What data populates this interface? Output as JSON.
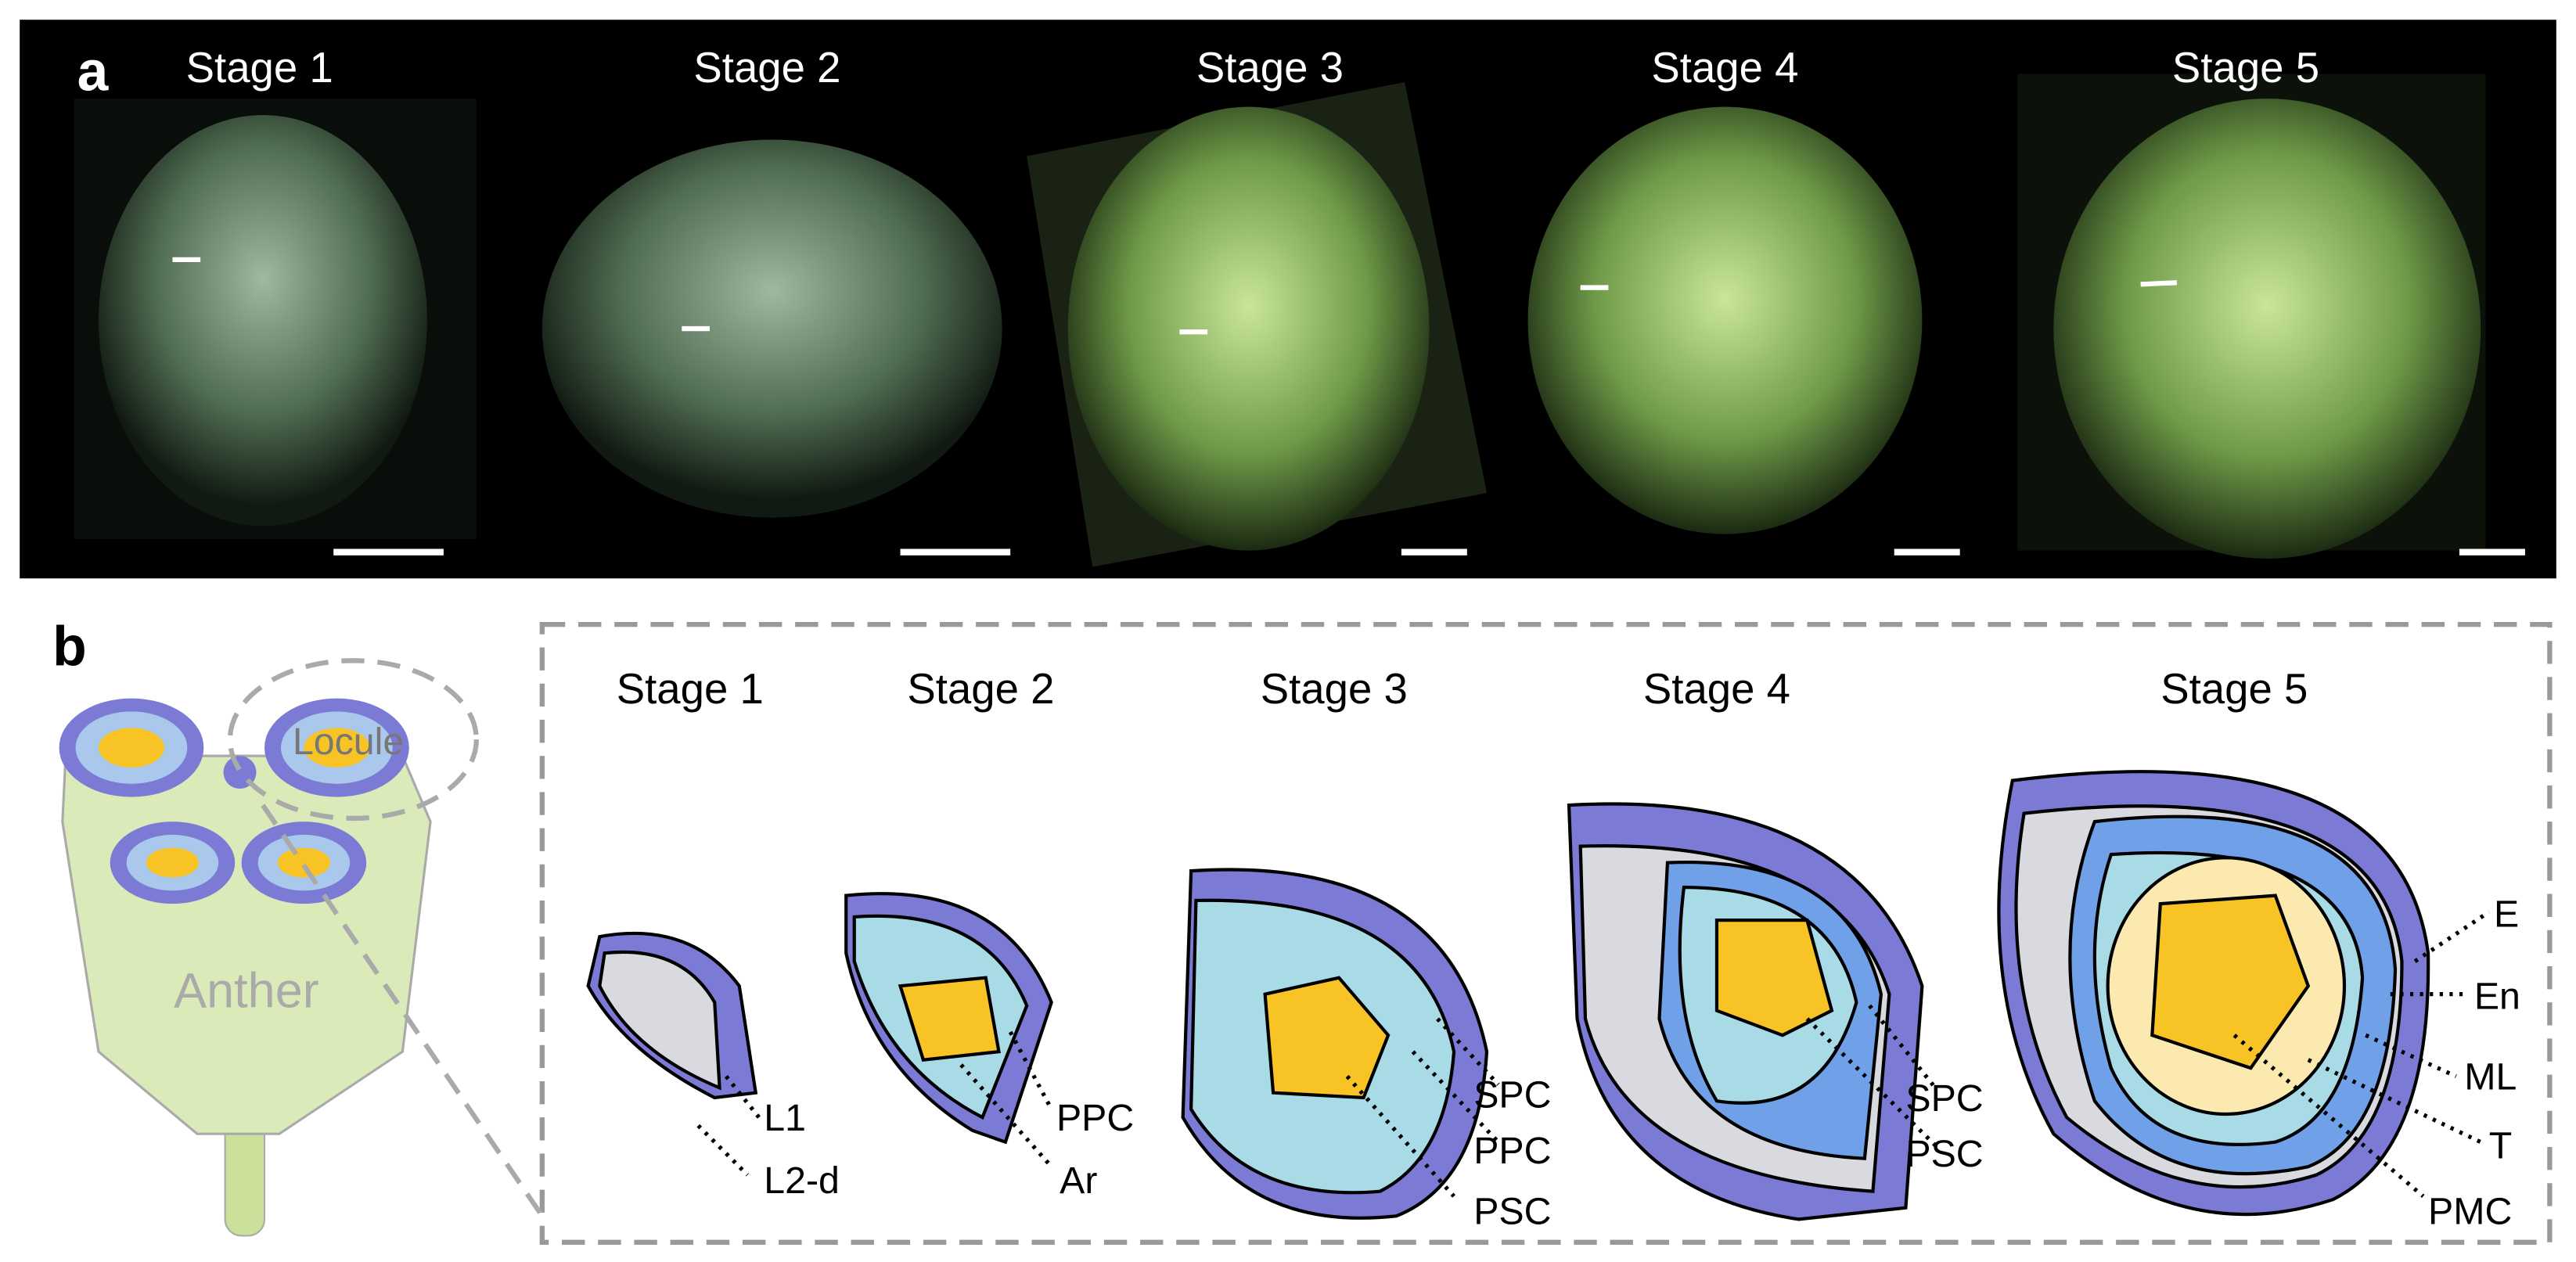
{
  "panel_a": {
    "label": "a",
    "stages": [
      "Stage 1",
      "Stage 2",
      "Stage 3",
      "Stage 4",
      "Stage 5"
    ]
  },
  "panel_b": {
    "label": "b",
    "anther": {
      "locule": "Locule",
      "anther": "Anther"
    },
    "stages": [
      {
        "title": "Stage 1",
        "labels": [
          "L1",
          "L2-d"
        ]
      },
      {
        "title": "Stage 2",
        "labels": [
          "PPC",
          "Ar"
        ]
      },
      {
        "title": "Stage 3",
        "labels": [
          "SPC",
          "PPC",
          "PSC"
        ]
      },
      {
        "title": "Stage 4",
        "labels": [
          "SPC",
          "PSC"
        ]
      },
      {
        "title": "Stage 5",
        "labels": [
          "E",
          "En",
          "ML",
          "T",
          "PMC"
        ]
      }
    ]
  }
}
